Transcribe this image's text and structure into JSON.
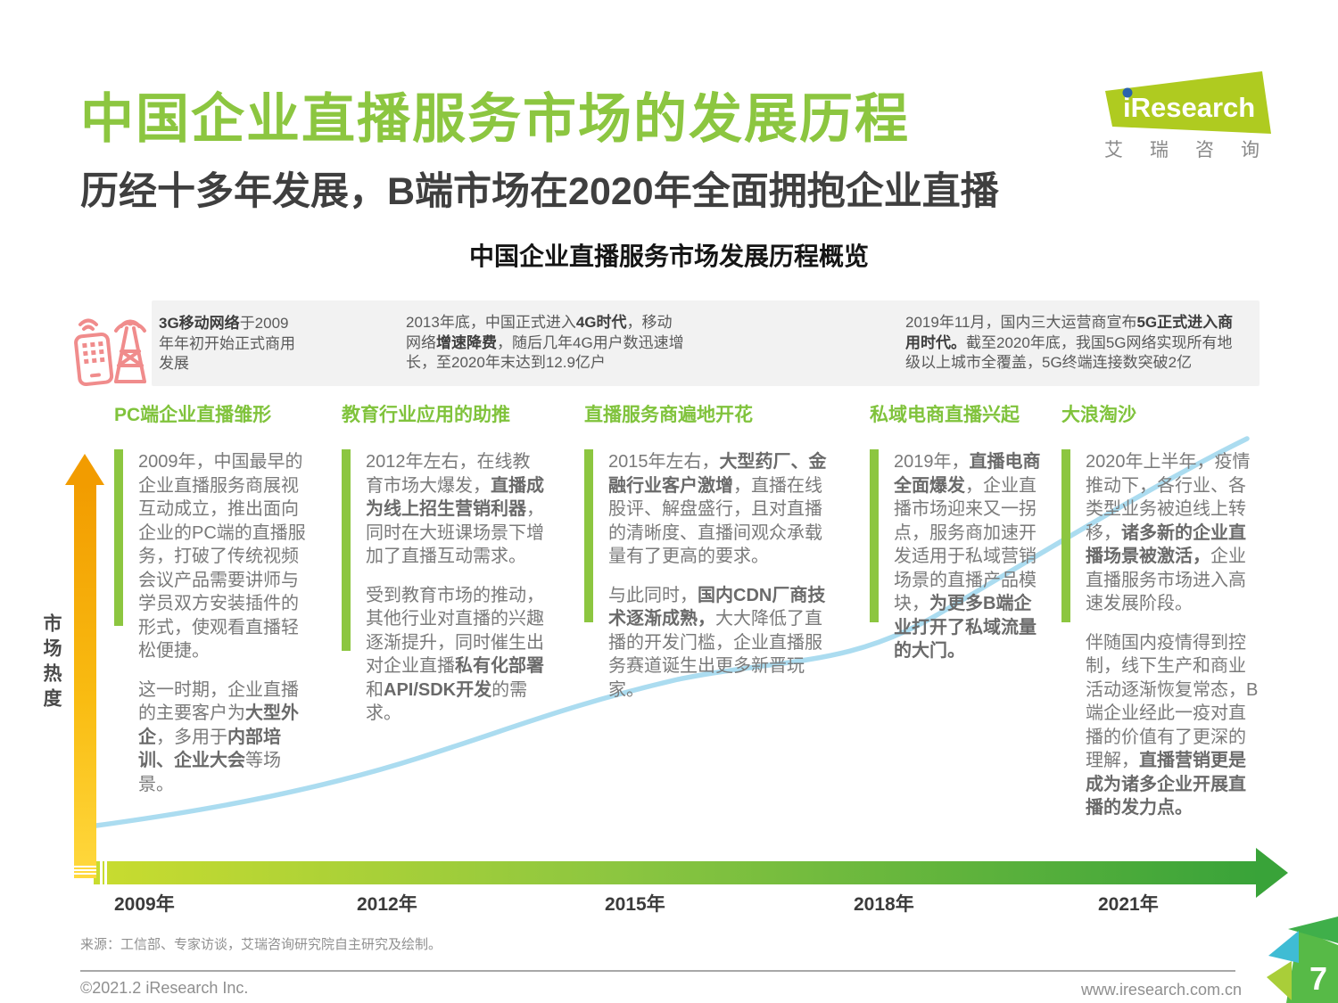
{
  "page": {
    "title": "中国企业直播服务市场的发展历程",
    "subtitle": "历经十多年发展，B端市场在2020年全面拥抱企业直播",
    "section_title": "中国企业直播服务市场发展历程概览",
    "source": "来源：工信部、专家访谈，艾瑞咨询研究院自主研究及绘制。",
    "copyright": "©2021.2 iResearch Inc.",
    "website": "www.iresearch.com.cn",
    "page_number": "7"
  },
  "logo": {
    "brand": "iResearch",
    "brand_cn": "艾瑞咨询",
    "caption_spaced": "艾瑞咨询"
  },
  "milestones": [
    {
      "icon": "phone-and-tower-icon",
      "runs": [
        {
          "t": "3G移动网络",
          "b": 1
        },
        {
          "t": "于2009年年初开始正式商用发展"
        }
      ]
    },
    {
      "runs": [
        {
          "t": "2013年底，中国正式进入"
        },
        {
          "t": "4G时代",
          "b": 1
        },
        {
          "t": "，移动网络"
        },
        {
          "t": "增速降费",
          "b": 1
        },
        {
          "t": "，随后几年4G用户数迅速增长，至2020年末达到12.9亿户"
        }
      ]
    },
    {
      "runs": [
        {
          "t": "2019年11月，国内三大运营商宣布"
        },
        {
          "t": "5G正式进入商用时代。",
          "b": 1
        },
        {
          "t": "截至2020年底，我国5G网络实现所有地级以上城市全覆盖，5G终端连接数突破2亿"
        }
      ]
    }
  ],
  "timeline": {
    "y_axis_label": "市场热度",
    "years": [
      "2009年",
      "2012年",
      "2015年",
      "2018年",
      "2021年"
    ],
    "stages": [
      {
        "title": "PC端企业直播雏形",
        "p1": [
          {
            "t": "2009年，中国最早的企业直播服务商展视互动成立，推出面向企业的PC端的直播服务，打破了传统视频会议产品需要讲师与学员双方安装插件的形式，使观看直播轻松便捷。"
          }
        ],
        "p2": [
          {
            "t": "这一时期，企业直播的主要客户为"
          },
          {
            "t": "大型外企",
            "b": 1
          },
          {
            "t": "，多用于"
          },
          {
            "t": "内部培训、企业大会",
            "b": 1
          },
          {
            "t": "等场景。"
          }
        ]
      },
      {
        "title": "教育行业应用的助推",
        "p1": [
          {
            "t": "2012年左右，在线教育市场大爆发，"
          },
          {
            "t": "直播成为线上招生营销利器",
            "b": 1
          },
          {
            "t": "，同时在大班课场景下增加了直播互动需求。"
          }
        ],
        "p2": [
          {
            "t": "受到教育市场的推动，其他行业对直播的兴趣逐渐提升，同时催生出对企业直播"
          },
          {
            "t": "私有化部署",
            "b": 1
          },
          {
            "t": "和"
          },
          {
            "t": "API/SDK开发",
            "b": 1
          },
          {
            "t": "的需求。"
          }
        ]
      },
      {
        "title": "直播服务商遍地开花",
        "p1": [
          {
            "t": "2015年左右，"
          },
          {
            "t": "大型药厂、金融行业客户激增",
            "b": 1
          },
          {
            "t": "，直播在线股评、解盘盛行，且对直播的清晰度、直播间观众承载量有了更高的要求。"
          }
        ],
        "p2": [
          {
            "t": "与此同时，"
          },
          {
            "t": "国内CDN厂商技术逐渐成熟，",
            "b": 1
          },
          {
            "t": "大大降低了直播的开发门槛，企业直播服务赛道诞生出更多新晋玩家。"
          }
        ]
      },
      {
        "title": "私域电商直播兴起",
        "p1": [
          {
            "t": "2019年，"
          },
          {
            "t": "直播电商全面爆发",
            "b": 1
          },
          {
            "t": "，企业直播市场迎来又一拐点，服务商加速开发适用于私域营销场景的直播产品模块，"
          },
          {
            "t": "为更多B端企业打开了私域流量的大门。",
            "b": 1
          }
        ]
      },
      {
        "title": "大浪淘沙",
        "p1": [
          {
            "t": "2020年上半年，疫情推动下，各行业、各类型业务被迫线上转移，"
          },
          {
            "t": "诸多新的企业直播场景被激活，",
            "b": 1
          },
          {
            "t": "企业直播服务市场进入高速发展阶段。"
          }
        ],
        "p2": [
          {
            "t": "伴随国内疫情得到控制，线下生产和商业活动逐渐恢复常态，B端企业经此一疫对直播的价值有了更深的理解，"
          },
          {
            "t": "直播营销更是成为诸多企业开展直播的发力点。",
            "b": 1
          }
        ]
      }
    ]
  },
  "colors": {
    "title_green": "#8CC640",
    "logo_green": "#AFCB20",
    "logo_dot_blue": "#2A63AD",
    "bar_green": "#8CC640",
    "axis_green_start": "#C9DC2F",
    "axis_green_end": "#39A339",
    "axis_yellow_top": "#F29C00",
    "axis_yellow_bottom": "#FFD93E",
    "curve_blue": "#ABDCF0",
    "icon_pink": "#F08C8C",
    "panel_gray": "#F2F2F2"
  }
}
